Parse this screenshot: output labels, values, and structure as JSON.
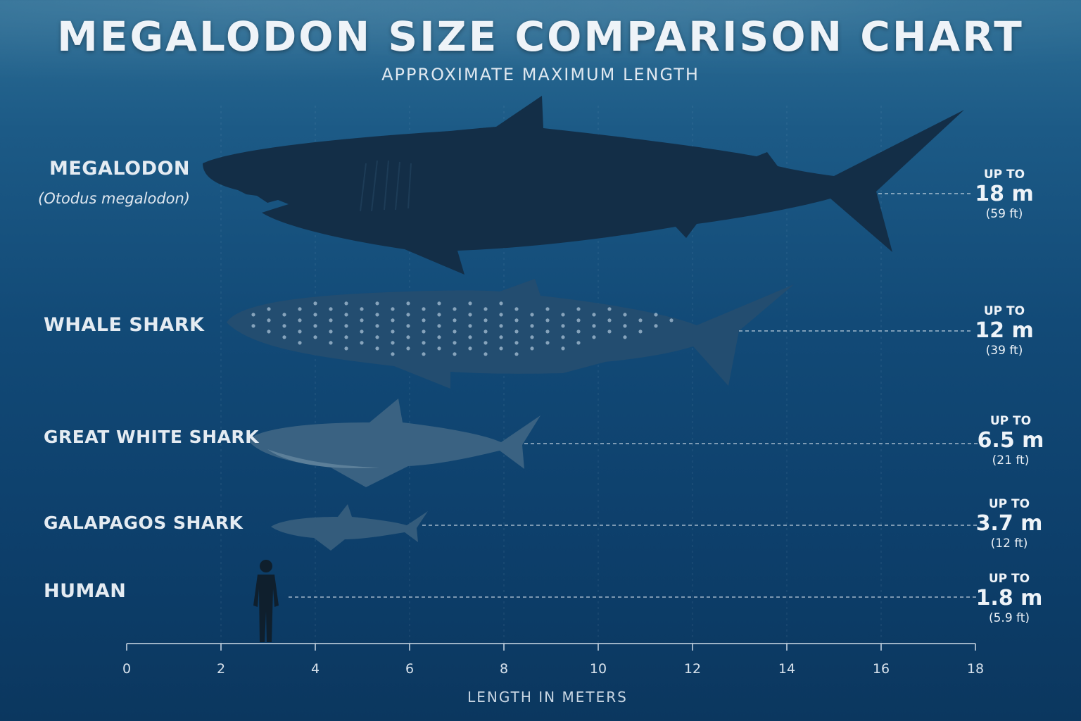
{
  "chart_data": {
    "type": "bar",
    "title": "MEGALODON SIZE COMPARISON CHART",
    "subtitle": "APPROXIMATE MAXIMUM LENGTH",
    "xlabel": "LENGTH IN METERS",
    "xlim": [
      0,
      18
    ],
    "xticks": [
      "0",
      "2",
      "4",
      "6",
      "8",
      "10",
      "12",
      "14",
      "16",
      "18"
    ],
    "categories": [
      "MEGALODON",
      "WHALE SHARK",
      "GREAT WHITE SHARK",
      "GALAPAGOS SHARK",
      "HUMAN"
    ],
    "scientific_name": "(Otodus megalodon)",
    "values": [
      18,
      12,
      6.5,
      3.7,
      1.8
    ],
    "value_labels": [
      {
        "prefix": "UP TO",
        "meters": "18 m",
        "feet": "(59 ft)"
      },
      {
        "prefix": "UP TO",
        "meters": "12 m",
        "feet": "(39 ft)"
      },
      {
        "prefix": "UP TO",
        "meters": "6.5 m",
        "feet": "(21 ft)"
      },
      {
        "prefix": "UP TO",
        "meters": "3.7 m",
        "feet": "(12 ft)"
      },
      {
        "prefix": "UP TO",
        "meters": "1.8 m",
        "feet": "(5.9 ft)"
      }
    ],
    "grid": true,
    "colors": {
      "background": "#124a77",
      "megalodon": "#122d46",
      "whale_shark": "#1f4a6d",
      "great_white": "#335b7c",
      "galapagos": "#2e5676",
      "human": "#0e1e2c",
      "dashed_line": "#dfe8f0"
    }
  }
}
